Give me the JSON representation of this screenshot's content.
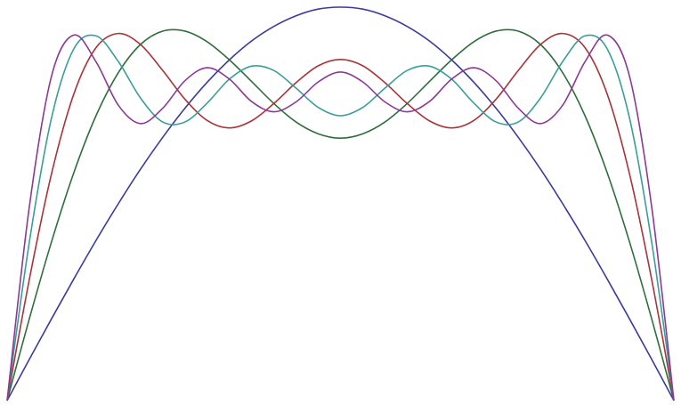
{
  "chart_data": {
    "type": "line",
    "x": [
      0,
      6,
      12,
      18,
      24,
      30,
      36,
      42,
      48,
      54,
      60,
      66,
      72,
      78,
      84,
      90,
      96,
      102,
      108,
      114,
      120,
      126,
      132,
      138,
      144,
      150,
      156,
      162,
      168,
      174,
      180
    ],
    "xlim": [
      0,
      180
    ],
    "ylim": [
      0,
      1
    ],
    "series": [
      {
        "color": "#3b3b9e",
        "values": [
          0,
          0.105,
          0.208,
          0.309,
          0.407,
          0.5,
          0.588,
          0.669,
          0.743,
          0.809,
          0.866,
          0.914,
          0.951,
          0.978,
          0.995,
          1,
          0.995,
          0.978,
          0.951,
          0.914,
          0.866,
          0.809,
          0.743,
          0.669,
          0.588,
          0.5,
          0.407,
          0.309,
          0.208,
          0.105,
          0
        ]
      },
      {
        "color": "#2f6e3c",
        "values": [
          0,
          0.208,
          0.404,
          0.579,
          0.724,
          0.833,
          0.905,
          0.939,
          0.939,
          0.912,
          0.866,
          0.811,
          0.755,
          0.708,
          0.678,
          0.667,
          0.678,
          0.708,
          0.755,
          0.811,
          0.866,
          0.912,
          0.939,
          0.939,
          0.905,
          0.833,
          0.724,
          0.579,
          0.404,
          0.208,
          0
        ]
      },
      {
        "color": "#a8343a",
        "values": [
          0,
          0.308,
          0.577,
          0.779,
          0.897,
          0.933,
          0.905,
          0.839,
          0.766,
          0.712,
          0.693,
          0.711,
          0.755,
          0.808,
          0.851,
          0.867,
          0.851,
          0.808,
          0.755,
          0.711,
          0.693,
          0.712,
          0.766,
          0.839,
          0.905,
          0.933,
          0.897,
          0.779,
          0.577,
          0.308,
          0
        ]
      },
      {
        "color": "#3a9e98",
        "values": [
          0,
          0.403,
          0.719,
          0.894,
          0.927,
          0.862,
          0.769,
          0.708,
          0.708,
          0.756,
          0.817,
          0.85,
          0.839,
          0.794,
          0.745,
          0.724,
          0.745,
          0.794,
          0.839,
          0.85,
          0.817,
          0.756,
          0.708,
          0.708,
          0.769,
          0.862,
          0.927,
          0.894,
          0.719,
          0.403,
          0
        ]
      },
      {
        "color": "#8a3a94",
        "values": [
          0,
          0.493,
          0.825,
          0.929,
          0.861,
          0.751,
          0.704,
          0.743,
          0.813,
          0.846,
          0.817,
          0.76,
          0.734,
          0.759,
          0.81,
          0.835,
          0.81,
          0.759,
          0.734,
          0.76,
          0.817,
          0.846,
          0.813,
          0.743,
          0.704,
          0.751,
          0.861,
          0.929,
          0.825,
          0.493,
          0
        ]
      }
    ]
  }
}
